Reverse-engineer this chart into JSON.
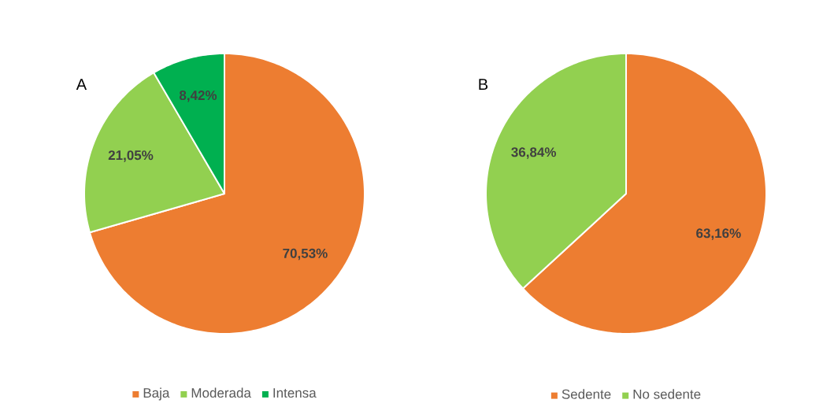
{
  "chart_data": [
    {
      "type": "pie",
      "title": "A",
      "categories": [
        "Baja",
        "Moderada",
        "Intensa"
      ],
      "values": [
        70.53,
        21.05,
        8.42
      ],
      "colors": [
        "#ed7d31",
        "#92d050",
        "#00b050"
      ],
      "value_labels": [
        "70,53%",
        "21,05%",
        "8,42%"
      ],
      "legend": "bottom"
    },
    {
      "type": "pie",
      "title": "B",
      "categories": [
        "Sedente",
        "No sedente"
      ],
      "values": [
        63.16,
        36.84
      ],
      "colors": [
        "#ed7d31",
        "#92d050"
      ],
      "value_labels": [
        "63,16%",
        "36,84%"
      ],
      "legend": "bottom"
    }
  ]
}
